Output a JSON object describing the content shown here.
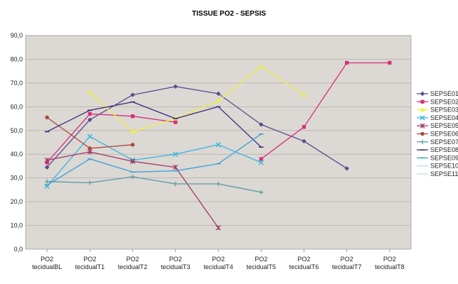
{
  "chart_data": {
    "type": "line",
    "title": "TISSUE PO2  - SEPSIS",
    "xlabel": "",
    "ylabel": "",
    "categories": [
      [
        "PO2",
        "tecidualBL"
      ],
      [
        "PO2",
        "tecidualT1"
      ],
      [
        "PO2",
        "tecidualT2"
      ],
      [
        "PO2",
        "tecidualT3"
      ],
      [
        "PO2",
        "tecidualT4"
      ],
      [
        "PO2",
        "tecidualT5"
      ],
      [
        "PO2",
        "tecidualT6"
      ],
      [
        "PO2",
        "tecidualT7"
      ],
      [
        "PO2",
        "tecidualT8"
      ]
    ],
    "ylim": [
      0,
      90
    ],
    "yticks": [
      "0,0",
      "10,0",
      "20,0",
      "30,0",
      "40,0",
      "50,0",
      "60,0",
      "70,0",
      "80,0",
      "90,0"
    ],
    "grid": true,
    "legend_position": "right",
    "background_color": "#dcd8d4",
    "series": [
      {
        "name": "SEPSE01",
        "color": "#5a4a8c",
        "marker": "diamond",
        "values": [
          34.5,
          54.5,
          65.0,
          68.5,
          65.5,
          52.5,
          45.5,
          34.0,
          null
        ]
      },
      {
        "name": "SEPSE02",
        "color": "#d6307a",
        "marker": "square",
        "values": [
          36.5,
          57.0,
          56.0,
          53.5,
          null,
          38.0,
          51.5,
          78.5,
          78.5
        ]
      },
      {
        "name": "SEPSE03",
        "color": "#f2f03a",
        "marker": "triangle",
        "values": [
          null,
          66.0,
          49.5,
          55.0,
          62.5,
          77.0,
          65.0,
          null,
          null
        ]
      },
      {
        "name": "SEPSE04",
        "color": "#38b6e0",
        "marker": "x",
        "values": [
          26.5,
          47.5,
          37.5,
          40.0,
          44.0,
          36.5,
          null,
          null,
          null
        ]
      },
      {
        "name": "SEPSE05",
        "color": "#a03a6a",
        "marker": "star",
        "values": [
          37.5,
          41.0,
          37.0,
          34.5,
          9.0,
          null,
          null,
          null,
          null
        ]
      },
      {
        "name": "SEPSE06",
        "color": "#a84a3a",
        "marker": "circle",
        "values": [
          55.5,
          42.5,
          44.0,
          null,
          null,
          null,
          null,
          null,
          null
        ]
      },
      {
        "name": "SEPSE07",
        "color": "#5a9aa0",
        "marker": "plus",
        "values": [
          28.5,
          28.0,
          30.5,
          27.5,
          27.5,
          24.0,
          null,
          null,
          null
        ]
      },
      {
        "name": "SEPSE08",
        "color": "#3a2a7a",
        "marker": "dash",
        "values": [
          49.5,
          58.5,
          62.0,
          55.0,
          60.0,
          43.0,
          null,
          null,
          null
        ]
      },
      {
        "name": "SEPSE09",
        "color": "#3aa0d8",
        "marker": "dash",
        "values": [
          27.0,
          38.0,
          32.5,
          33.0,
          36.0,
          48.5,
          null,
          null,
          null
        ]
      },
      {
        "name": "SEPSE10",
        "color": "#b8d8f0",
        "marker": "none",
        "values": [
          null,
          null,
          null,
          null,
          null,
          null,
          null,
          null,
          null
        ]
      },
      {
        "name": "SEPSE11",
        "color": "#c0e0d8",
        "marker": "none",
        "values": [
          null,
          null,
          null,
          null,
          null,
          null,
          null,
          null,
          null
        ]
      }
    ]
  }
}
